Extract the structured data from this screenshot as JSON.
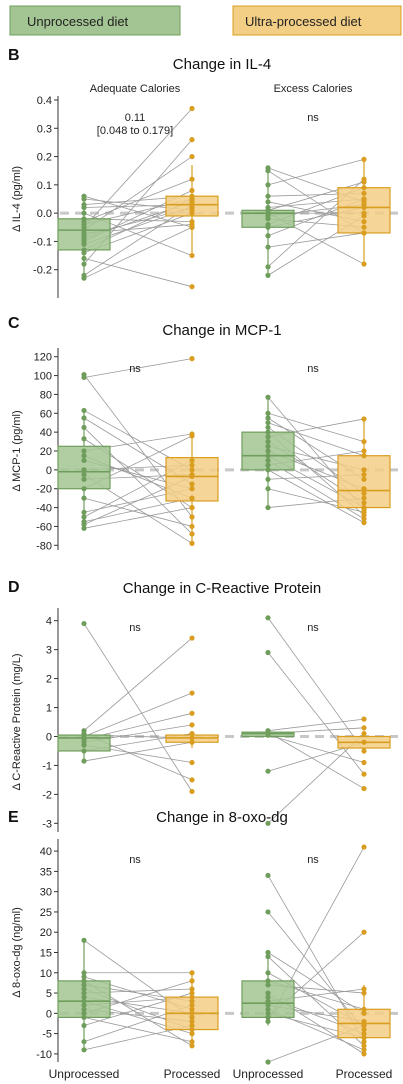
{
  "legend": {
    "items": [
      {
        "label": "Unprocessed diet",
        "color": "#7fb06a"
      },
      {
        "label": "Ultra-processed diet",
        "color": "#e5a82a"
      }
    ]
  },
  "colors": {
    "unprocessed_fill": "#a3c593",
    "unprocessed_edge": "#6f9e5c",
    "processed_fill": "#f3cf86",
    "processed_edge": "#d99e1f",
    "line": "#9a9a9a",
    "zero_line": "#c8c8c8"
  },
  "column_labels": {
    "left": "Adequate Calories",
    "right": "Excess Calories"
  },
  "x_labels": {
    "unprocessed": "Unprocessed",
    "processed": "Processed"
  },
  "chart_data": [
    {
      "panel_letter": "B",
      "type": "boxplot-paired",
      "title": "Change in IL-4",
      "ylabel": "Δ IL-4 (pg/ml)",
      "ylim": [
        -0.3,
        0.4
      ],
      "yticks": [
        -0.2,
        -0.1,
        0.0,
        0.1,
        0.2,
        0.3,
        0.4
      ],
      "ytick_labels": [
        "-0.2",
        "-0.1",
        "0.0",
        "0.1",
        "0.2",
        "0.3",
        "0.4"
      ],
      "groups": [
        {
          "name": "Adequate Calories",
          "annotation": [
            "0.11",
            "[0.048 to 0.179]"
          ],
          "unprocessed": {
            "q1": -0.13,
            "median": -0.06,
            "q3": -0.02,
            "whisker_low": -0.23,
            "whisker_high": 0.06
          },
          "processed": {
            "q1": -0.01,
            "median": 0.03,
            "q3": 0.06,
            "whisker_low": -0.15,
            "whisker_high": 0.17
          },
          "pairs": [
            [
              -0.23,
              -0.05
            ],
            [
              -0.22,
              0.03
            ],
            [
              -0.18,
              0.26
            ],
            [
              -0.16,
              -0.26
            ],
            [
              -0.14,
              0.0
            ],
            [
              -0.13,
              0.05
            ],
            [
              -0.11,
              0.02
            ],
            [
              -0.1,
              0.08
            ],
            [
              -0.09,
              0.04
            ],
            [
              -0.08,
              0.02
            ],
            [
              -0.07,
              -0.04
            ],
            [
              -0.06,
              0.2
            ],
            [
              -0.05,
              0.37
            ],
            [
              -0.04,
              0.05
            ],
            [
              -0.03,
              0.12
            ],
            [
              -0.02,
              -0.03
            ],
            [
              0.0,
              -0.15
            ],
            [
              0.02,
              0.03
            ],
            [
              0.03,
              0.06
            ],
            [
              0.05,
              0.01
            ],
            [
              0.06,
              -0.05
            ]
          ]
        },
        {
          "name": "Excess Calories",
          "annotation": [
            "ns"
          ],
          "unprocessed": {
            "q1": -0.05,
            "median": 0.0,
            "q3": 0.01,
            "whisker_low": -0.22,
            "whisker_high": 0.16
          },
          "processed": {
            "q1": -0.07,
            "median": 0.02,
            "q3": 0.09,
            "whisker_low": -0.18,
            "whisker_high": 0.19
          },
          "pairs": [
            [
              -0.22,
              -0.01
            ],
            [
              -0.19,
              0.12
            ],
            [
              -0.12,
              -0.07
            ],
            [
              -0.08,
              0.05
            ],
            [
              -0.05,
              0.02
            ],
            [
              -0.04,
              0.09
            ],
            [
              -0.02,
              -0.05
            ],
            [
              -0.01,
              0.03
            ],
            [
              0.0,
              0.0
            ],
            [
              0.0,
              -0.18
            ],
            [
              0.01,
              0.11
            ],
            [
              0.02,
              0.05
            ],
            [
              0.04,
              -0.03
            ],
            [
              0.06,
              0.07
            ],
            [
              0.1,
              0.19
            ],
            [
              0.15,
              -0.07
            ],
            [
              0.16,
              0.04
            ]
          ]
        }
      ]
    },
    {
      "panel_letter": "C",
      "type": "boxplot-paired",
      "title": "Change in MCP-1",
      "ylabel": "Δ MCP-1 (pg/ml)",
      "ylim": [
        -85,
        125
      ],
      "yticks": [
        -80,
        -60,
        -40,
        -20,
        0,
        20,
        40,
        60,
        80,
        100,
        120
      ],
      "ytick_labels": [
        "-80",
        "-60",
        "-40",
        "-20",
        "0",
        "20",
        "40",
        "60",
        "80",
        "100",
        "120"
      ],
      "groups": [
        {
          "name": "Adequate Calories",
          "annotation": [
            "ns"
          ],
          "unprocessed": {
            "q1": -20,
            "median": -2,
            "q3": 25,
            "whisker_low": -62,
            "whisker_high": 63
          },
          "processed": {
            "q1": -33,
            "median": -7,
            "q3": 13,
            "whisker_low": -78,
            "whisker_high": 36
          },
          "pairs": [
            [
              -62,
              -40
            ],
            [
              -58,
              -7
            ],
            [
              -55,
              -30
            ],
            [
              -50,
              10
            ],
            [
              -45,
              -20
            ],
            [
              -30,
              -60
            ],
            [
              -20,
              36
            ],
            [
              -10,
              -5
            ],
            [
              -5,
              -78
            ],
            [
              0,
              5
            ],
            [
              10,
              -20
            ],
            [
              20,
              38
            ],
            [
              33,
              -40
            ],
            [
              45,
              -68
            ],
            [
              55,
              -15
            ],
            [
              63,
              0
            ],
            [
              98,
              118
            ],
            [
              101,
              -50
            ],
            [
              15,
              -30
            ]
          ]
        },
        {
          "name": "Excess Calories",
          "annotation": [
            "ns"
          ],
          "unprocessed": {
            "q1": 0,
            "median": 15,
            "q3": 40,
            "whisker_low": -40,
            "whisker_high": 77
          },
          "processed": {
            "q1": -40,
            "median": -22,
            "q3": 15,
            "whisker_low": -56,
            "whisker_high": 54
          },
          "pairs": [
            [
              -40,
              -30
            ],
            [
              -20,
              -45
            ],
            [
              -10,
              -5
            ],
            [
              0,
              -56
            ],
            [
              5,
              20
            ],
            [
              10,
              -52
            ],
            [
              15,
              -40
            ],
            [
              20,
              -20
            ],
            [
              25,
              0
            ],
            [
              30,
              -35
            ],
            [
              35,
              54
            ],
            [
              40,
              -48
            ],
            [
              45,
              -25
            ],
            [
              55,
              -10
            ],
            [
              60,
              30
            ],
            [
              77,
              -42
            ],
            [
              50,
              15
            ]
          ]
        }
      ]
    },
    {
      "panel_letter": "D",
      "type": "boxplot-paired",
      "title": "Change in C-Reactive Protein",
      "ylabel": "Δ C-Reactive Protein (mg/L)",
      "ylim": [
        -3.3,
        4.3
      ],
      "yticks": [
        -3,
        -2,
        -1,
        0,
        1,
        2,
        3,
        4
      ],
      "ytick_labels": [
        "-3",
        "-2",
        "-1",
        "0",
        "1",
        "2",
        "3",
        "4"
      ],
      "groups": [
        {
          "name": "Adequate Calories",
          "annotation": [
            "ns"
          ],
          "unprocessed": {
            "q1": -0.5,
            "median": -0.05,
            "q3": 0.05,
            "whisker_low": -0.85,
            "whisker_high": 0.25
          },
          "processed": {
            "q1": -0.2,
            "median": -0.05,
            "q3": 0.05,
            "whisker_low": -0.4,
            "whisker_high": 0.1
          },
          "pairs": [
            [
              3.9,
              -1.9
            ],
            [
              0.2,
              3.4
            ],
            [
              0.1,
              -1.5
            ],
            [
              0.0,
              1.5
            ],
            [
              -0.1,
              0.8
            ],
            [
              -0.2,
              0.4
            ],
            [
              -0.3,
              -0.9
            ],
            [
              -0.5,
              0.1
            ],
            [
              -0.85,
              -0.2
            ],
            [
              0.05,
              -0.05
            ]
          ]
        },
        {
          "name": "Excess Calories",
          "annotation": [
            "ns"
          ],
          "unprocessed": {
            "q1": 0.0,
            "median": 0.1,
            "q3": 0.15,
            "whisker_low": -0.05,
            "whisker_high": 0.2
          },
          "processed": {
            "q1": -0.4,
            "median": -0.2,
            "q3": 0.0,
            "whisker_low": -0.6,
            "whisker_high": 0.2
          },
          "pairs": [
            [
              4.1,
              -0.5
            ],
            [
              2.9,
              -1.3
            ],
            [
              0.2,
              0.6
            ],
            [
              0.15,
              -1.8
            ],
            [
              0.1,
              0.3
            ],
            [
              0.05,
              -0.9
            ],
            [
              -1.2,
              -0.2
            ],
            [
              -3.0,
              0.1
            ]
          ]
        }
      ]
    },
    {
      "panel_letter": "E",
      "type": "boxplot-paired",
      "title": "Change in 8-oxo-dg",
      "ylabel": "Δ 8-oxo-dg (ng/ml)",
      "ylim": [
        -12,
        42
      ],
      "yticks": [
        -10,
        -5,
        0,
        5,
        10,
        15,
        20,
        25,
        30,
        35,
        40
      ],
      "ytick_labels": [
        "-10",
        "-5",
        "0",
        "5",
        "10",
        "15",
        "20",
        "25",
        "30",
        "35",
        "40"
      ],
      "groups": [
        {
          "name": "Adequate Calories",
          "annotation": [
            "ns"
          ],
          "unprocessed": {
            "q1": -1,
            "median": 3,
            "q3": 8,
            "whisker_low": -9,
            "whisker_high": 18
          },
          "processed": {
            "q1": -4,
            "median": 0,
            "q3": 4,
            "whisker_low": -8,
            "whisker_high": 10
          },
          "pairs": [
            [
              -9,
              -3
            ],
            [
              -7,
              2
            ],
            [
              -3,
              5
            ],
            [
              -1,
              -7
            ],
            [
              0,
              8
            ],
            [
              1,
              -2
            ],
            [
              2,
              4
            ],
            [
              3,
              -5
            ],
            [
              4,
              0
            ],
            [
              5,
              6
            ],
            [
              6,
              -4
            ],
            [
              7,
              3
            ],
            [
              8,
              -8
            ],
            [
              9,
              1
            ],
            [
              10,
              10
            ],
            [
              18,
              -1
            ]
          ]
        },
        {
          "name": "Excess Calories",
          "annotation": [
            "ns"
          ],
          "unprocessed": {
            "q1": -1,
            "median": 2.5,
            "q3": 8,
            "whisker_low": -3,
            "whisker_high": 15
          },
          "processed": {
            "q1": -6,
            "median": -2.5,
            "q3": 1,
            "whisker_low": -10,
            "whisker_high": 7
          },
          "pairs": [
            [
              -12,
              -3
            ],
            [
              -2,
              41
            ],
            [
              -1,
              20
            ],
            [
              0,
              -6
            ],
            [
              1,
              -9
            ],
            [
              2,
              -2
            ],
            [
              3,
              6
            ],
            [
              4,
              -5
            ],
            [
              5,
              -10
            ],
            [
              8,
              1
            ],
            [
              10,
              -3
            ],
            [
              14,
              -8
            ],
            [
              15,
              0
            ],
            [
              25,
              -4
            ],
            [
              34,
              -7
            ],
            [
              7,
              5
            ]
          ]
        }
      ]
    }
  ]
}
